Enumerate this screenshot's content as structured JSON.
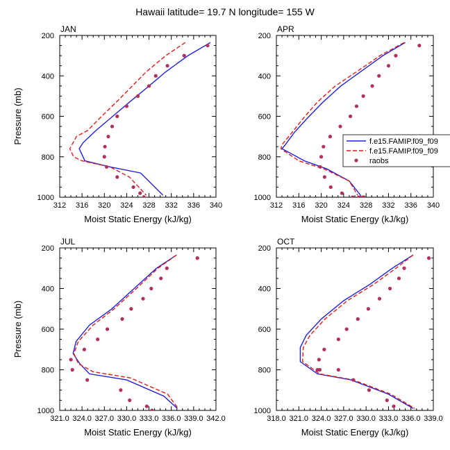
{
  "title": "Hawaii  latitude= 19.7 N longitude= 155 W",
  "colors": {
    "model1": "#1f1fdc",
    "model2": "#e01b1b",
    "obs": "#b03060"
  },
  "legend": {
    "entries": [
      {
        "label": "f.e15.FAMIP.f09_f09",
        "style": "solid",
        "color": "#1f1fdc"
      },
      {
        "label": "f.e15.FAMIP.f09_f09",
        "style": "dashed",
        "color": "#e01b1b"
      },
      {
        "label": "raobs",
        "style": "marker",
        "color": "#b03060"
      }
    ]
  },
  "chart_data": [
    {
      "type": "line",
      "panel": "JAN",
      "xlabel": "Moist Static Energy (kJ/kg)",
      "ylabel": "Pressure (mb)",
      "xlim": [
        312,
        340
      ],
      "ylim": [
        1000,
        200
      ],
      "y_inverted": true,
      "xticks": [
        "312",
        "316",
        "320",
        "324",
        "328",
        "332",
        "336",
        "340"
      ],
      "xtick_values": [
        312,
        316,
        320,
        324,
        328,
        332,
        336,
        340
      ],
      "yticks": [
        "200",
        "400",
        "600",
        "800",
        "1000"
      ],
      "ytick_values": [
        200,
        400,
        600,
        800,
        1000
      ],
      "series": [
        {
          "name": "f.e15.FAMIP.f09_f09",
          "style": "solid",
          "x": [
            339,
            335,
            331,
            328,
            324.5,
            321.5,
            318.5,
            316.2,
            315.5,
            316.5,
            321,
            326.5,
            330.5
          ],
          "y": [
            235,
            300,
            380,
            450,
            530,
            600,
            670,
            730,
            760,
            820,
            850,
            880,
            990
          ]
        },
        {
          "name": "f.e15.FAMIP.f09_f09",
          "style": "dashed",
          "x": [
            334.5,
            331,
            327.5,
            325,
            322.5,
            319.5,
            317,
            315,
            313.8,
            314.5,
            316,
            321,
            324.5,
            327.5
          ],
          "y": [
            235,
            300,
            380,
            450,
            520,
            600,
            670,
            700,
            760,
            800,
            820,
            850,
            900,
            990
          ]
        },
        {
          "name": "raobs",
          "style": "marker",
          "x": [
            338.5,
            334.3,
            331.3,
            329.2,
            328,
            326,
            324,
            322.3,
            321.4,
            320.7,
            320.1,
            320,
            320.4,
            322.3,
            325.2,
            326.4,
            327.1
          ],
          "y": [
            250,
            300,
            350,
            400,
            450,
            500,
            550,
            600,
            650,
            700,
            750,
            800,
            850,
            900,
            950,
            980,
            1000
          ]
        }
      ]
    },
    {
      "type": "line",
      "panel": "APR",
      "xlabel": "Moist Static Energy (kJ/kg)",
      "ylabel": "",
      "xlim": [
        312,
        340
      ],
      "ylim": [
        1000,
        200
      ],
      "y_inverted": true,
      "xticks": [
        "312",
        "316",
        "320",
        "324",
        "328",
        "332",
        "336",
        "340"
      ],
      "xtick_values": [
        312,
        316,
        320,
        324,
        328,
        332,
        336,
        340
      ],
      "yticks": [
        "200",
        "400",
        "600",
        "800",
        "1000"
      ],
      "ytick_values": [
        200,
        400,
        600,
        800,
        1000
      ],
      "series": [
        {
          "name": "f.e15.FAMIP.f09_f09",
          "style": "solid",
          "x": [
            335,
            331,
            327,
            323.5,
            320.3,
            317.5,
            315.2,
            313.6,
            313,
            317,
            321,
            325,
            327
          ],
          "y": [
            235,
            300,
            380,
            450,
            530,
            610,
            680,
            740,
            760,
            820,
            860,
            920,
            990
          ]
        },
        {
          "name": "f.e15.FAMIP.f09_f09",
          "style": "dashed",
          "x": [
            334.8,
            330.5,
            326.3,
            322.5,
            319.3,
            316.8,
            314.5,
            313,
            312.8,
            316,
            320.5,
            325,
            326.5
          ],
          "y": [
            235,
            300,
            380,
            450,
            530,
            610,
            690,
            740,
            760,
            820,
            860,
            920,
            990
          ]
        },
        {
          "name": "raobs",
          "style": "marker",
          "x": [
            337.5,
            333.3,
            332,
            330.3,
            329.1,
            327.5,
            326.3,
            325.2,
            323.4,
            321.6,
            320.4,
            320,
            319.8,
            320.6,
            321.7,
            323.7,
            325.6,
            326.7,
            327.4,
            327.6
          ],
          "y": [
            250,
            300,
            350,
            400,
            450,
            500,
            550,
            600,
            650,
            700,
            750,
            800,
            850,
            900,
            950,
            980,
            1000,
            1000,
            1000,
            1000
          ]
        }
      ]
    },
    {
      "type": "line",
      "panel": "JUL",
      "xlabel": "Moist Static Energy (kJ/kg)",
      "ylabel": "Pressure (mb)",
      "xlim": [
        321,
        342
      ],
      "ylim": [
        1000,
        200
      ],
      "y_inverted": true,
      "xticks": [
        "321.0",
        "324.0",
        "327.0",
        "330.0",
        "333.0",
        "336.0",
        "339.0",
        "342.0"
      ],
      "xtick_values": [
        321,
        324,
        327,
        330,
        333,
        336,
        339,
        342
      ],
      "yticks": [
        "200",
        "400",
        "600",
        "800",
        "1000"
      ],
      "ytick_values": [
        200,
        400,
        600,
        800,
        1000
      ],
      "series": [
        {
          "name": "f.e15.FAMIP.f09_f09",
          "style": "solid",
          "x": [
            336.7,
            334,
            331,
            328,
            325,
            323.2,
            322.8,
            323.7,
            325,
            330,
            335,
            336.8
          ],
          "y": [
            235,
            300,
            400,
            500,
            580,
            660,
            720,
            770,
            820,
            850,
            930,
            990
          ]
        },
        {
          "name": "f.e15.FAMIP.f09_f09",
          "style": "dashed",
          "x": [
            336.7,
            334.2,
            331.3,
            328.3,
            325.5,
            323.5,
            322.9,
            323.5,
            325.5,
            330.5,
            335.5,
            336.9
          ],
          "y": [
            235,
            300,
            400,
            500,
            580,
            660,
            720,
            770,
            810,
            840,
            920,
            990
          ]
        },
        {
          "name": "raobs",
          "style": "marker",
          "x": [
            339.5,
            335.4,
            334.6,
            333.3,
            332.2,
            330.6,
            329.4,
            327.4,
            326.1,
            324.3,
            322.5,
            322.7,
            324.7,
            329.2,
            330.4,
            332.7,
            333.4
          ],
          "y": [
            250,
            300,
            350,
            400,
            450,
            500,
            550,
            600,
            650,
            700,
            750,
            800,
            850,
            900,
            950,
            980,
            1000
          ]
        }
      ]
    },
    {
      "type": "line",
      "panel": "OCT",
      "xlabel": "Moist Static Energy (kJ/kg)",
      "ylabel": "",
      "xlim": [
        318,
        339
      ],
      "ylim": [
        1000,
        200
      ],
      "y_inverted": true,
      "xticks": [
        "318.0",
        "321.0",
        "324.0",
        "327.0",
        "330.0",
        "333.0",
        "336.0",
        "339.0"
      ],
      "xtick_values": [
        318,
        321,
        324,
        327,
        330,
        333,
        336,
        339
      ],
      "yticks": [
        "200",
        "400",
        "600",
        "800",
        "1000"
      ],
      "ytick_values": [
        200,
        400,
        600,
        800,
        1000
      ],
      "series": [
        {
          "name": "f.e15.FAMIP.f09_f09",
          "style": "solid",
          "x": [
            336.3,
            333.5,
            330.5,
            327,
            324,
            322,
            321.2,
            321.2,
            323.5,
            328,
            333,
            336.3
          ],
          "y": [
            235,
            300,
            380,
            460,
            550,
            630,
            690,
            760,
            820,
            850,
            920,
            990
          ]
        },
        {
          "name": "f.e15.FAMIP.f09_f09",
          "style": "dashed",
          "x": [
            336.3,
            334,
            331,
            327.5,
            324.5,
            322.5,
            321.6,
            321.5,
            323.8,
            328.3,
            333.3,
            336.5
          ],
          "y": [
            235,
            300,
            380,
            460,
            550,
            630,
            690,
            760,
            820,
            850,
            920,
            990
          ]
        },
        {
          "name": "raobs",
          "style": "marker",
          "x": [
            338.4,
            335.1,
            334.4,
            333.2,
            331.8,
            330.3,
            328.9,
            327.4,
            326.3,
            324.4,
            323.7,
            323.5,
            323.8,
            326.3,
            328.3,
            330.4,
            332.8,
            333.7
          ],
          "y": [
            250,
            300,
            350,
            400,
            450,
            500,
            550,
            600,
            650,
            700,
            750,
            800,
            800,
            800,
            850,
            900,
            950,
            980
          ]
        }
      ]
    }
  ]
}
